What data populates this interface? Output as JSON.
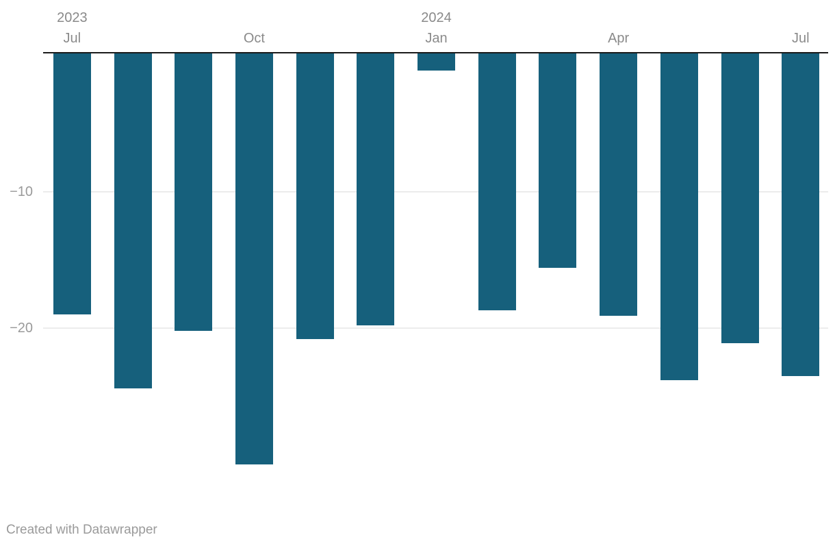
{
  "chart": {
    "footer": "Created with Datawrapper"
  },
  "chart_data": {
    "type": "bar",
    "title": "",
    "xlabel": "",
    "ylabel": "",
    "categories": [
      "Jul 2023",
      "Aug 2023",
      "Sep 2023",
      "Oct 2023",
      "Nov 2023",
      "Dec 2023",
      "Jan 2024",
      "Feb 2024",
      "Mar 2024",
      "Apr 2024",
      "May 2024",
      "Jun 2024",
      "Jul 2024"
    ],
    "values": [
      -19.0,
      -24.4,
      -20.2,
      -30.0,
      -20.8,
      -19.8,
      -1.1,
      -18.7,
      -15.6,
      -19.1,
      -23.8,
      -21.1,
      -23.5
    ],
    "ylim": [
      -31,
      0
    ],
    "grid": "horizontal",
    "legend": "none",
    "baseline": 0,
    "x_ticks": [
      {
        "index": 0,
        "year": "2023",
        "month": "Jul"
      },
      {
        "index": 3,
        "year": "",
        "month": "Oct"
      },
      {
        "index": 6,
        "year": "2024",
        "month": "Jan"
      },
      {
        "index": 9,
        "year": "",
        "month": "Apr"
      },
      {
        "index": 12,
        "year": "",
        "month": "Jul"
      }
    ],
    "y_ticks": [
      {
        "value": -10,
        "label": "−10"
      },
      {
        "value": -20,
        "label": "−20"
      }
    ],
    "colors": {
      "bar": "#16607c",
      "axis_line": "#1a1a1a",
      "gridline": "#ececec",
      "x_tick_label": "#8a8a8a",
      "y_tick_label": "#9a9a9a",
      "footer_text": "#9a9a9a",
      "background": "#ffffff"
    }
  }
}
